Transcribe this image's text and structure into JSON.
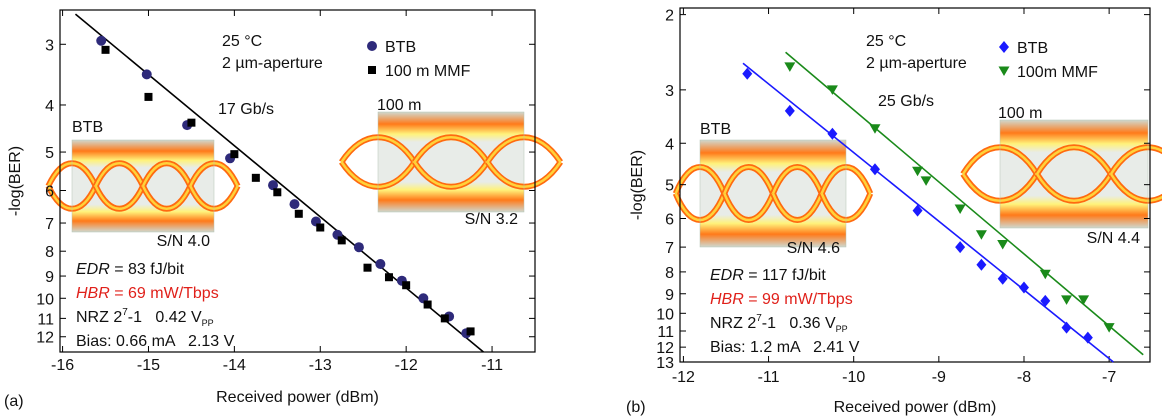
{
  "chart_data": [
    {
      "type": "scatter",
      "panel_label": "(a)",
      "xlabel": "Received power (dBm)",
      "ylabel": "-log(BER)",
      "xlim": [
        -16.03,
        -10.5
      ],
      "xticks": [
        -16,
        -15,
        -14,
        -13,
        -12,
        -11
      ],
      "ylim": [
        2.55,
        12.9
      ],
      "yticks": [
        3,
        4,
        5,
        6,
        7,
        8,
        9,
        10,
        11,
        12
      ],
      "yscale": "log",
      "yinvert": true,
      "temperature": "25 °C",
      "aperture": "2 µm-aperture",
      "rate": "17 Gb/s",
      "eye_labels": [
        "BTB",
        "S/N 4.0",
        "100 m",
        "S/N 3.2"
      ],
      "notes": {
        "edr_label": "EDR",
        "edr": " = 83 fJ/bit",
        "hbr_label": "HBR",
        "hbr": " = 69 mW/Tbps",
        "nrz": "NRZ 2",
        "nrz_exp": "7",
        "nrz_rest": "-1   0.42 V",
        "nrz_sub": "PP",
        "bias": "Bias: 0.66 mA   2.13 V"
      },
      "series": [
        {
          "name": "BTB",
          "color": "#2e2a7a",
          "marker": "circle",
          "x": [
            -15.55,
            -15.02,
            -14.55,
            -14.05,
            -13.55,
            -13.3,
            -13.05,
            -12.8,
            -12.55,
            -12.3,
            -12.05,
            -11.8,
            -11.5,
            -11.3
          ],
          "values": [
            2.95,
            3.46,
            4.4,
            5.15,
            5.85,
            6.4,
            6.95,
            7.4,
            7.85,
            8.5,
            9.2,
            10,
            10.9,
            11.8
          ]
        },
        {
          "name": "100 m MMF",
          "color": "#000000",
          "marker": "square",
          "x": [
            -15.5,
            -15,
            -14.5,
            -14,
            -13.75,
            -13.5,
            -13.25,
            -13,
            -12.75,
            -12.45,
            -12.2,
            -12,
            -11.75,
            -11.55,
            -11.25
          ],
          "values": [
            3.08,
            3.85,
            4.35,
            5.05,
            5.65,
            6.05,
            6.7,
            7.15,
            7.6,
            8.65,
            9.05,
            9.4,
            10.3,
            11,
            11.7
          ]
        }
      ],
      "fit_lines": [
        {
          "color": "#000000",
          "x": [
            -15.85,
            -11.1
          ],
          "y": [
            2.6,
            12.9
          ]
        }
      ]
    },
    {
      "type": "scatter",
      "panel_label": "(b)",
      "xlabel": "Received power (dBm)",
      "ylabel": "-log(BER)",
      "xlim": [
        -12.04,
        -6.52
      ],
      "xticks": [
        -12,
        -11,
        -10,
        -9,
        -8,
        -7
      ],
      "ylim": [
        1.93,
        13
      ],
      "yticks": [
        2,
        3,
        4,
        5,
        6,
        7,
        8,
        9,
        10,
        11,
        12,
        13
      ],
      "yscale": "log",
      "yinvert": true,
      "temperature": "25 °C",
      "aperture": "2 µm-aperture",
      "rate": "25 Gb/s",
      "eye_labels": [
        "BTB",
        "S/N 4.6",
        "100 m",
        "S/N 4.4"
      ],
      "notes": {
        "edr_label": "EDR",
        "edr": " = 117 fJ/bit",
        "hbr_label": "HBR",
        "hbr": " = 99 mW/Tbps",
        "nrz": "NRZ 2",
        "nrz_exp": "7",
        "nrz_rest": "-1   0.36 V",
        "nrz_sub": "PP",
        "bias": "Bias: 1.2 mA   2.41 V"
      },
      "series": [
        {
          "name": "BTB",
          "color": "#1a1aff",
          "marker": "diamond",
          "x": [
            -11.25,
            -10.75,
            -10.25,
            -9.75,
            -9.25,
            -8.75,
            -8.5,
            -8.25,
            -8,
            -7.75,
            -7.5,
            -7.25
          ],
          "values": [
            2.75,
            3.36,
            3.8,
            4.6,
            5.75,
            7,
            7.7,
            8.3,
            8.7,
            9.35,
            10.8,
            11.4
          ]
        },
        {
          "name": "100m MMF",
          "color": "#1a8a1a",
          "marker": "triangle",
          "x": [
            -10.75,
            -10.25,
            -9.75,
            -9.25,
            -9.15,
            -8.75,
            -8.5,
            -8.25,
            -7.75,
            -7.5,
            -7.3,
            -7
          ],
          "values": [
            2.65,
            3,
            3.7,
            4.65,
            4.9,
            5.7,
            6.55,
            6.9,
            8.1,
            9.3,
            9.3,
            10.8
          ]
        }
      ],
      "fit_lines": [
        {
          "color": "#1a1aff",
          "x": [
            -11.3,
            -6.95
          ],
          "y": [
            2.6,
            13
          ]
        },
        {
          "color": "#1a8a1a",
          "x": [
            -10.8,
            -6.6
          ],
          "y": [
            2.45,
            12.5
          ]
        }
      ]
    }
  ]
}
